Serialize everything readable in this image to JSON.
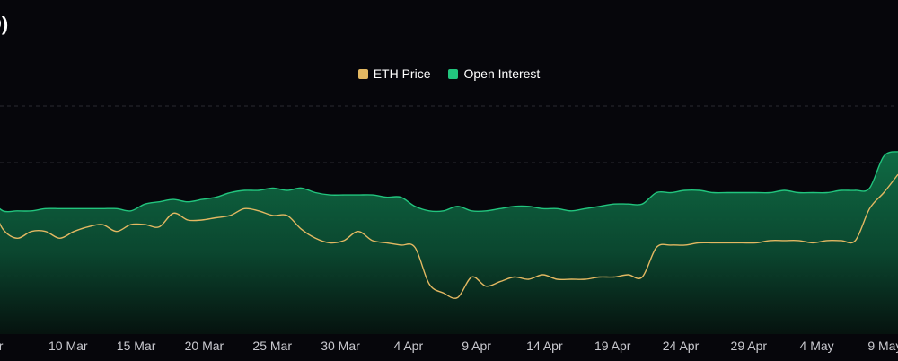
{
  "colors": {
    "background": "#06060b",
    "price": "#e3b862",
    "open_interest_line": "#22c57e",
    "open_interest_fill": "#0f6b44"
  },
  "chart_data": {
    "type": "area",
    "title": "D)",
    "legend_placement": "top-center",
    "grid": "horizontal-dashed",
    "x_ticks": [
      "ar",
      "10 Mar",
      "15 Mar",
      "20 Mar",
      "25 Mar",
      "30 Mar",
      "4 Apr",
      "9 Apr",
      "14 Apr",
      "19 Apr",
      "24 Apr",
      "29 Apr",
      "4 May",
      "9 May"
    ],
    "x_start": "5 Mar",
    "x_end": "11 May",
    "series": [
      {
        "name": "ETH Price",
        "kind": "line",
        "y_range": [
          0,
          1
        ],
        "points": [
          [
            "5 Mar",
            0.62
          ],
          [
            "6 Mar",
            0.59
          ],
          [
            "7 Mar",
            0.57
          ],
          [
            "8 Mar",
            0.58
          ],
          [
            "9 Mar",
            0.46
          ],
          [
            "10 Mar",
            0.42
          ],
          [
            "11 Mar",
            0.45
          ],
          [
            "12 Mar",
            0.45
          ],
          [
            "13 Mar",
            0.42
          ],
          [
            "14 Mar",
            0.45
          ],
          [
            "15 Mar",
            0.47
          ],
          [
            "16 Mar",
            0.48
          ],
          [
            "17 Mar",
            0.45
          ],
          [
            "18 Mar",
            0.48
          ],
          [
            "19 Mar",
            0.48
          ],
          [
            "20 Mar",
            0.47
          ],
          [
            "21 Mar",
            0.53
          ],
          [
            "22 Mar",
            0.5
          ],
          [
            "23 Mar",
            0.5
          ],
          [
            "24 Mar",
            0.51
          ],
          [
            "25 Mar",
            0.52
          ],
          [
            "26 Mar",
            0.55
          ],
          [
            "27 Mar",
            0.54
          ],
          [
            "28 Mar",
            0.52
          ],
          [
            "29 Mar",
            0.52
          ],
          [
            "30 Mar",
            0.46
          ],
          [
            "31 Mar",
            0.42
          ],
          [
            "1 Apr",
            0.4
          ],
          [
            "2 Apr",
            0.41
          ],
          [
            "3 Apr",
            0.45
          ],
          [
            "4 Apr",
            0.41
          ],
          [
            "5 Apr",
            0.4
          ],
          [
            "6 Apr",
            0.39
          ],
          [
            "7 Apr",
            0.38
          ],
          [
            "8 Apr",
            0.22
          ],
          [
            "9 Apr",
            0.18
          ],
          [
            "10 Apr",
            0.16
          ],
          [
            "11 Apr",
            0.25
          ],
          [
            "12 Apr",
            0.21
          ],
          [
            "13 Apr",
            0.23
          ],
          [
            "14 Apr",
            0.25
          ],
          [
            "15 Apr",
            0.24
          ],
          [
            "16 Apr",
            0.26
          ],
          [
            "17 Apr",
            0.24
          ],
          [
            "18 Apr",
            0.24
          ],
          [
            "19 Apr",
            0.24
          ],
          [
            "20 Apr",
            0.25
          ],
          [
            "21 Apr",
            0.25
          ],
          [
            "22 Apr",
            0.26
          ],
          [
            "23 Apr",
            0.25
          ],
          [
            "24 Apr",
            0.38
          ],
          [
            "25 Apr",
            0.39
          ],
          [
            "26 Apr",
            0.39
          ],
          [
            "27 Apr",
            0.4
          ],
          [
            "28 Apr",
            0.4
          ],
          [
            "29 Apr",
            0.4
          ],
          [
            "30 Apr",
            0.4
          ],
          [
            "1 May",
            0.4
          ],
          [
            "2 May",
            0.41
          ],
          [
            "3 May",
            0.41
          ],
          [
            "4 May",
            0.41
          ],
          [
            "5 May",
            0.4
          ],
          [
            "6 May",
            0.41
          ],
          [
            "7 May",
            0.41
          ],
          [
            "8 May",
            0.41
          ],
          [
            "9 May",
            0.55
          ],
          [
            "10 May",
            0.62
          ],
          [
            "11 May",
            0.7
          ]
        ]
      },
      {
        "name": "Open Interest",
        "kind": "area",
        "y_range": [
          0,
          1
        ],
        "points": [
          [
            "5 Mar",
            0.59
          ],
          [
            "6 Mar",
            0.59
          ],
          [
            "7 Mar",
            0.59
          ],
          [
            "8 Mar",
            0.59
          ],
          [
            "9 Mar",
            0.54
          ],
          [
            "10 Mar",
            0.54
          ],
          [
            "11 Mar",
            0.54
          ],
          [
            "12 Mar",
            0.55
          ],
          [
            "13 Mar",
            0.55
          ],
          [
            "14 Mar",
            0.55
          ],
          [
            "15 Mar",
            0.55
          ],
          [
            "16 Mar",
            0.55
          ],
          [
            "17 Mar",
            0.55
          ],
          [
            "18 Mar",
            0.54
          ],
          [
            "19 Mar",
            0.57
          ],
          [
            "20 Mar",
            0.58
          ],
          [
            "21 Mar",
            0.59
          ],
          [
            "22 Mar",
            0.58
          ],
          [
            "23 Mar",
            0.59
          ],
          [
            "24 Mar",
            0.6
          ],
          [
            "25 Mar",
            0.62
          ],
          [
            "26 Mar",
            0.63
          ],
          [
            "27 Mar",
            0.63
          ],
          [
            "28 Mar",
            0.64
          ],
          [
            "29 Mar",
            0.63
          ],
          [
            "30 Mar",
            0.64
          ],
          [
            "31 Mar",
            0.62
          ],
          [
            "1 Apr",
            0.61
          ],
          [
            "2 Apr",
            0.61
          ],
          [
            "3 Apr",
            0.61
          ],
          [
            "4 Apr",
            0.61
          ],
          [
            "5 Apr",
            0.6
          ],
          [
            "6 Apr",
            0.6
          ],
          [
            "7 Apr",
            0.56
          ],
          [
            "8 Apr",
            0.54
          ],
          [
            "9 Apr",
            0.54
          ],
          [
            "10 Apr",
            0.56
          ],
          [
            "11 Apr",
            0.54
          ],
          [
            "12 Apr",
            0.54
          ],
          [
            "13 Apr",
            0.55
          ],
          [
            "14 Apr",
            0.56
          ],
          [
            "15 Apr",
            0.56
          ],
          [
            "16 Apr",
            0.55
          ],
          [
            "17 Apr",
            0.55
          ],
          [
            "18 Apr",
            0.54
          ],
          [
            "19 Apr",
            0.55
          ],
          [
            "20 Apr",
            0.56
          ],
          [
            "21 Apr",
            0.57
          ],
          [
            "22 Apr",
            0.57
          ],
          [
            "23 Apr",
            0.57
          ],
          [
            "24 Apr",
            0.62
          ],
          [
            "25 Apr",
            0.62
          ],
          [
            "26 Apr",
            0.63
          ],
          [
            "27 Apr",
            0.63
          ],
          [
            "28 Apr",
            0.62
          ],
          [
            "29 Apr",
            0.62
          ],
          [
            "30 Apr",
            0.62
          ],
          [
            "1 May",
            0.62
          ],
          [
            "2 May",
            0.62
          ],
          [
            "3 May",
            0.63
          ],
          [
            "4 May",
            0.62
          ],
          [
            "5 May",
            0.62
          ],
          [
            "6 May",
            0.62
          ],
          [
            "7 May",
            0.63
          ],
          [
            "8 May",
            0.63
          ],
          [
            "9 May",
            0.64
          ],
          [
            "10 May",
            0.78
          ],
          [
            "11 May",
            0.8
          ]
        ]
      }
    ]
  }
}
